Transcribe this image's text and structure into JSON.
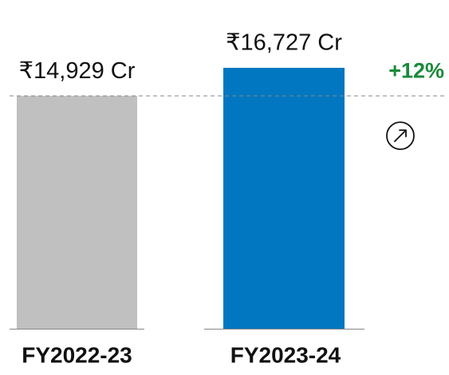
{
  "chart_data": {
    "type": "bar",
    "categories": [
      "FY2022-23",
      "FY2023-24"
    ],
    "values": [
      14929,
      16727
    ],
    "value_labels": [
      "₹14,929 Cr",
      "₹16,727 Cr"
    ],
    "colors": [
      "#c0c0c0",
      "#0077c0"
    ],
    "annotation": "+12%",
    "annotation_color": "#1a8a3a"
  }
}
